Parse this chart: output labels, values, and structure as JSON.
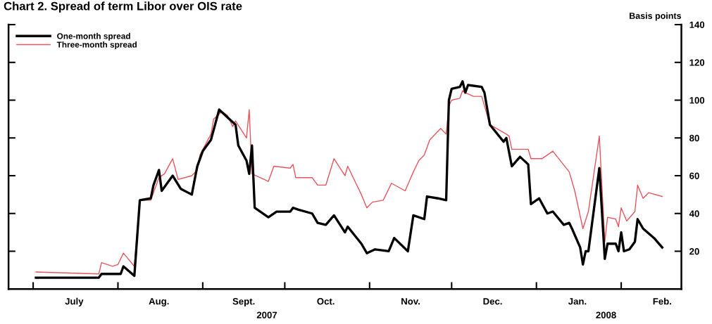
{
  "chart_data": {
    "type": "line",
    "title": "Chart 2. Spread of term Libor over OIS rate",
    "ylabel": "Basis points",
    "x": [
      "2007-07-02",
      "2007-07-25",
      "2007-07-26",
      "2007-08-02",
      "2007-08-03",
      "2007-08-07",
      "2007-08-09",
      "2007-08-13",
      "2007-08-14",
      "2007-08-16",
      "2007-08-17",
      "2007-08-21",
      "2007-08-24",
      "2007-08-28",
      "2007-08-30",
      "2007-09-01",
      "2007-09-04",
      "2007-09-07",
      "2007-09-13",
      "2007-09-14",
      "2007-09-17",
      "2007-09-18",
      "2007-09-19",
      "2007-09-20",
      "2007-09-25",
      "2007-09-28",
      "2007-10-03",
      "2007-10-04",
      "2007-10-06",
      "2007-10-11",
      "2007-10-13",
      "2007-10-16",
      "2007-10-19",
      "2007-10-23",
      "2007-10-24",
      "2007-10-29",
      "2007-10-31",
      "2007-11-03",
      "2007-11-08",
      "2007-11-10",
      "2007-11-15",
      "2007-11-17",
      "2007-11-21",
      "2007-11-22",
      "2007-11-26",
      "2007-11-29",
      "2007-11-30",
      "2007-12-01",
      "2007-12-04",
      "2007-12-05",
      "2007-12-06",
      "2007-12-07",
      "2007-12-12",
      "2007-12-13",
      "2007-12-15",
      "2007-12-20",
      "2007-12-21",
      "2007-12-23",
      "2007-12-26",
      "2007-12-29",
      "2007-12-30",
      "2008-01-02",
      "2008-01-05",
      "2008-01-07",
      "2008-01-11",
      "2008-01-13",
      "2008-01-14",
      "2008-01-17",
      "2008-01-18",
      "2008-01-19",
      "2008-01-20",
      "2008-01-24",
      "2008-01-26",
      "2008-01-27",
      "2008-01-30",
      "2008-01-31",
      "2008-02-01",
      "2008-02-02",
      "2008-02-04",
      "2008-02-06",
      "2008-02-07",
      "2008-02-09",
      "2008-02-13",
      "2008-02-16"
    ],
    "series": [
      {
        "name": "One-month spread",
        "color": "#000000",
        "values": [
          6,
          6,
          8,
          8,
          12,
          7,
          47,
          48,
          55,
          63,
          52,
          60,
          53,
          50,
          65,
          73,
          79,
          95,
          87,
          76,
          68,
          61,
          76,
          43,
          38,
          41,
          41,
          43,
          42,
          40,
          35,
          34,
          39,
          30,
          33,
          24,
          19,
          21,
          20,
          27,
          20,
          39,
          37,
          49,
          48,
          47,
          100,
          106,
          107,
          110,
          104,
          108,
          107,
          104,
          87,
          78,
          80,
          65,
          70,
          66,
          45,
          48,
          40,
          41,
          34,
          35,
          32,
          22,
          13,
          20,
          20,
          64,
          16,
          24,
          24,
          20,
          30,
          20,
          21,
          25,
          37,
          32,
          27,
          22
        ]
      },
      {
        "name": "Three-month spread",
        "color": "#e8555f",
        "x": [
          "2007-07-02",
          "2007-07-25",
          "2007-07-26",
          "2007-07-30",
          "2007-08-01",
          "2007-08-03",
          "2007-08-07",
          "2007-08-09",
          "2007-08-13",
          "2007-08-16",
          "2007-08-18",
          "2007-08-21",
          "2007-08-23",
          "2007-08-28",
          "2007-08-30",
          "2007-08-31",
          "2007-09-04",
          "2007-09-05",
          "2007-09-08",
          "2007-09-10",
          "2007-09-12",
          "2007-09-13",
          "2007-09-17",
          "2007-09-18",
          "2007-09-19",
          "2007-09-25",
          "2007-09-27",
          "2007-10-03",
          "2007-10-04",
          "2007-10-05",
          "2007-10-11",
          "2007-10-13",
          "2007-10-16",
          "2007-10-19",
          "2007-10-23",
          "2007-10-24",
          "2007-10-29",
          "2007-10-31",
          "2007-11-02",
          "2007-11-06",
          "2007-11-09",
          "2007-11-14",
          "2007-11-17",
          "2007-11-19",
          "2007-11-21",
          "2007-11-23",
          "2007-11-27",
          "2007-11-29",
          "2007-11-30",
          "2007-12-01",
          "2007-12-04",
          "2007-12-05",
          "2007-12-06",
          "2007-12-09",
          "2007-12-12",
          "2007-12-15",
          "2007-12-21",
          "2007-12-22",
          "2007-12-23",
          "2007-12-29",
          "2007-12-30",
          "2008-01-03",
          "2008-01-07",
          "2008-01-13",
          "2008-01-15",
          "2008-01-18",
          "2008-01-20",
          "2008-01-24",
          "2008-01-26",
          "2008-01-27",
          "2008-01-30",
          "2008-01-31",
          "2008-02-01",
          "2008-02-03",
          "2008-02-06",
          "2008-02-07",
          "2008-02-09",
          "2008-02-11",
          "2008-02-16"
        ],
        "values": [
          9,
          8,
          14,
          12,
          13,
          19,
          12,
          47,
          47,
          59,
          61,
          69,
          58,
          60,
          63,
          71,
          82,
          90,
          94,
          92,
          86,
          89,
          80,
          95,
          61,
          57,
          65,
          64,
          66,
          59,
          59,
          55,
          55,
          69,
          60,
          65,
          50,
          43,
          46,
          47,
          56,
          52,
          62,
          68,
          71,
          79,
          85,
          82,
          97,
          100,
          101,
          105,
          104,
          102,
          102,
          87,
          82,
          81,
          74,
          74,
          69,
          69,
          73,
          62,
          52,
          32,
          41,
          81,
          25,
          38,
          37,
          33,
          43,
          36,
          41,
          55,
          48,
          51,
          49
        ]
      }
    ],
    "xlim": [
      "2007-06-22",
      "2008-02-23"
    ],
    "xticks": [
      {
        "value": "2007-07-01",
        "label": null
      },
      {
        "value": "2007-07-16",
        "label": "July"
      },
      {
        "value": "2007-08-01",
        "label": null
      },
      {
        "value": "2007-08-16",
        "label": "Aug."
      },
      {
        "value": "2007-09-01",
        "label": null
      },
      {
        "value": "2007-09-16",
        "label": "Sept."
      },
      {
        "value": "2007-10-01",
        "label": null
      },
      {
        "value": "2007-10-16",
        "label": "Oct."
      },
      {
        "value": "2007-11-01",
        "label": null
      },
      {
        "value": "2007-11-16",
        "label": "Nov."
      },
      {
        "value": "2007-12-01",
        "label": null
      },
      {
        "value": "2007-12-16",
        "label": "Dec."
      },
      {
        "value": "2008-01-01",
        "label": null
      },
      {
        "value": "2008-01-16",
        "label": "Jan."
      },
      {
        "value": "2008-02-01",
        "label": null
      },
      {
        "value": "2008-02-16",
        "label": "Feb."
      }
    ],
    "ylim": [
      0,
      140
    ],
    "yticks": [
      20,
      40,
      60,
      80,
      100,
      120,
      140
    ],
    "annotations": [
      "2007",
      "2008"
    ],
    "legend": "top left",
    "grid": false,
    "line_style": "solid",
    "marker": "none"
  }
}
